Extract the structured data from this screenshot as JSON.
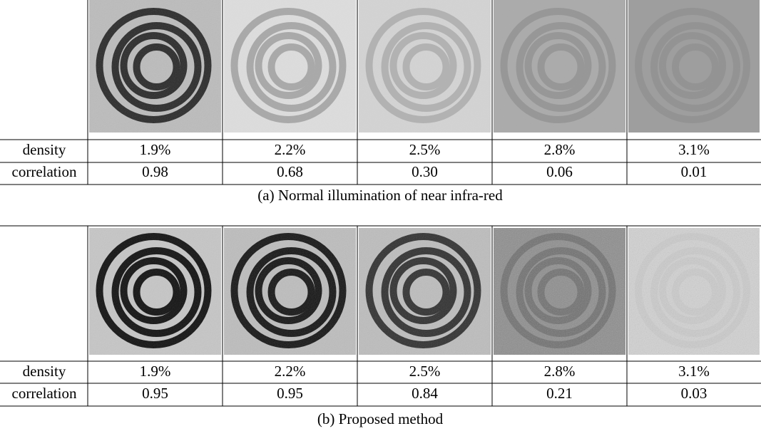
{
  "tables": [
    {
      "rows": [
        {
          "label": "density",
          "cells": [
            "1.9%",
            "2.2%",
            "2.5%",
            "2.8%",
            "3.1%"
          ]
        },
        {
          "label": "correlation",
          "cells": [
            "0.98",
            "0.68",
            "0.30",
            "0.06",
            "0.01"
          ]
        }
      ],
      "caption": "(a) Normal illumination of near infra-red"
    },
    {
      "rows": [
        {
          "label": "density",
          "cells": [
            "1.9%",
            "2.2%",
            "2.5%",
            "2.8%",
            "3.1%"
          ]
        },
        {
          "label": "correlation",
          "cells": [
            "0.95",
            "0.95",
            "0.84",
            "0.21",
            "0.03"
          ]
        }
      ],
      "caption": "(b) Proposed method"
    }
  ]
}
